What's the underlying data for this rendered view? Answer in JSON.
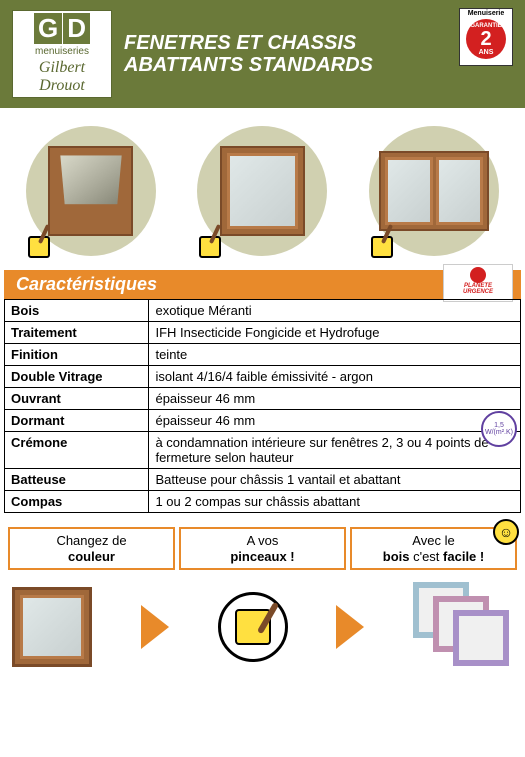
{
  "header": {
    "logo_letters": [
      "G",
      "D"
    ],
    "logo_sub": "menuiseries",
    "logo_script": "Gilbert Drouot",
    "title_line1": "FENETRES ET CHASSIS",
    "title_line2": "ABATTANTS STANDARDS",
    "badge_top": "Menuiserie",
    "badge_garantie": "GARANTIE",
    "badge_num": "2",
    "badge_ans": "ANS"
  },
  "section_title": "Caractéristiques",
  "planete": {
    "line1": "PLANETE",
    "line2": "URGENCE"
  },
  "stamp": "1,5 W/(m².K)",
  "specs": [
    {
      "label": "Bois",
      "value": "exotique Méranti"
    },
    {
      "label": "Traitement",
      "value": "IFH Insecticide Fongicide et Hydrofuge"
    },
    {
      "label": "Finition",
      "value": "teinte"
    },
    {
      "label": "Double Vitrage",
      "value": "isolant 4/16/4 faible émissivité - argon"
    },
    {
      "label": "Ouvrant",
      "value": "épaisseur 46 mm"
    },
    {
      "label": "Dormant",
      "value": "épaisseur 46 mm"
    },
    {
      "label": "Crémone",
      "value": "à condamnation intérieure sur fenêtres 2, 3 ou 4 points de fermeture selon hauteur"
    },
    {
      "label": "Batteuse",
      "value": "Batteuse pour châssis 1 vantail et abattant"
    },
    {
      "label": "Compas",
      "value": "1 ou 2 compas sur châssis abattant"
    }
  ],
  "bottom": {
    "label1_a": "Changez de",
    "label1_b": "couleur",
    "label2_a": "A vos",
    "label2_b": "pinceaux !",
    "label3_a": "Avec le",
    "label3_b": "bois",
    "label3_c": " c'est ",
    "label3_d": "facile !",
    "smiley": "☺"
  },
  "colors": {
    "header_bg": "#6b7a3a",
    "accent": "#e88a2a",
    "wood": "#a0683a",
    "red": "#d32020",
    "yellow": "#ffe040"
  }
}
